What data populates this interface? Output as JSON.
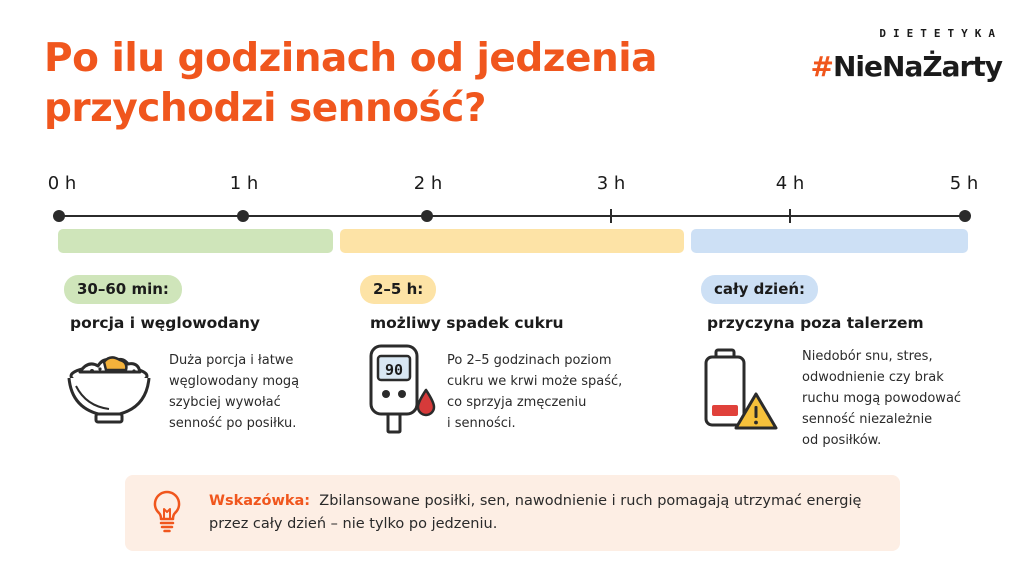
{
  "title": {
    "line1": "Po ilu godzinach od jedzenia",
    "line2": "przychodzi senność?"
  },
  "brand": {
    "small": "DIETETYKA",
    "hash": "#",
    "name": "NieNaŻarty"
  },
  "timeline": {
    "labels": [
      "0 h",
      "1 h",
      "2 h",
      "3 h",
      "4 h",
      "5 h"
    ]
  },
  "sections": [
    {
      "badge": "30–60 min:",
      "title": "porcja i węglowodany",
      "description_lines": [
        "Duża porcja i łatwe",
        "węglowodany mogą",
        "szybciej wywołać",
        "senność po posiłku."
      ],
      "icon": "rice-bowl-icon",
      "color": "#cfe5ba"
    },
    {
      "badge": "2–5 h:",
      "title": "możliwy spadek cukru",
      "description_lines": [
        "Po 2–5 godzinach poziom",
        "cukru we krwi może spaść,",
        "co sprzyja zmęczeniu",
        "i senności."
      ],
      "icon": "glucometer-icon",
      "meter_value": "90",
      "color": "#fde3a6"
    },
    {
      "badge": "cały dzień:",
      "title": "przyczyna poza talerzem",
      "description_lines": [
        "Niedobór snu, stres,",
        "odwodnienie czy brak",
        "ruchu mogą powodować",
        "senność niezależnie",
        "od posiłków."
      ],
      "icon": "low-battery-warning-icon",
      "color": "#cde0f5"
    }
  ],
  "tip": {
    "lead": "Wskazówka:",
    "text": "Zbilansowane posiłki, sen, nawodnienie i ruch pomagają utrzymać energię przez cały dzień – nie tylko po jedzeniu.",
    "icon": "lightbulb-icon"
  },
  "colors": {
    "accent": "#f0561d",
    "green": "#cfe5ba",
    "yellow": "#fde3a6",
    "blue": "#cde0f5",
    "tip_background": "#fdeee4"
  }
}
